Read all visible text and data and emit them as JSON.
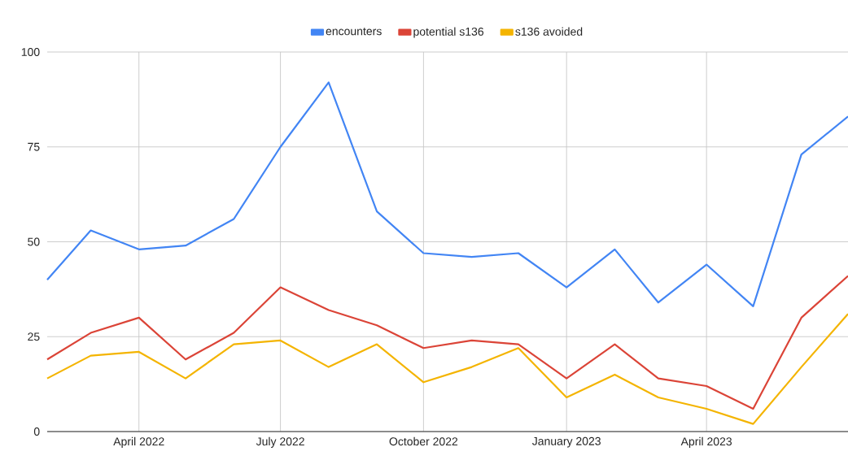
{
  "chart_data": {
    "type": "line",
    "x": [
      "2022-02",
      "2022-03",
      "2022-04",
      "2022-05",
      "2022-06",
      "2022-07",
      "2022-08",
      "2022-09",
      "2022-10",
      "2022-11",
      "2022-12",
      "2023-01",
      "2023-02",
      "2023-03",
      "2023-04",
      "2023-05",
      "2023-06",
      "2023-07"
    ],
    "series": [
      {
        "name": "encounters",
        "color": "#4285f4",
        "values": [
          40,
          53,
          48,
          49,
          56,
          75,
          92,
          58,
          47,
          46,
          47,
          38,
          48,
          34,
          44,
          33,
          73,
          83
        ]
      },
      {
        "name": "potential s136",
        "color": "#db4437",
        "values": [
          19,
          26,
          30,
          19,
          26,
          38,
          32,
          28,
          22,
          24,
          23,
          14,
          23,
          14,
          12,
          6,
          30,
          41
        ]
      },
      {
        "name": "s136 avoided",
        "color": "#f4b400",
        "values": [
          14,
          20,
          21,
          14,
          23,
          24,
          17,
          23,
          13,
          17,
          22,
          9,
          15,
          9,
          6,
          2,
          17,
          31
        ]
      }
    ],
    "xlim": [
      "2022-02",
      "2023-07"
    ],
    "xticks": [
      {
        "value": "2022-04",
        "label": "April 2022"
      },
      {
        "value": "2022-07",
        "label": "July 2022"
      },
      {
        "value": "2022-10",
        "label": "October 2022"
      },
      {
        "value": "2023-01",
        "label": "January 2023"
      },
      {
        "value": "2023-04",
        "label": "April 2023"
      }
    ],
    "ylim": [
      0,
      100
    ],
    "yticks": [
      0,
      25,
      50,
      75,
      100
    ],
    "grid": true,
    "legend": "top"
  }
}
